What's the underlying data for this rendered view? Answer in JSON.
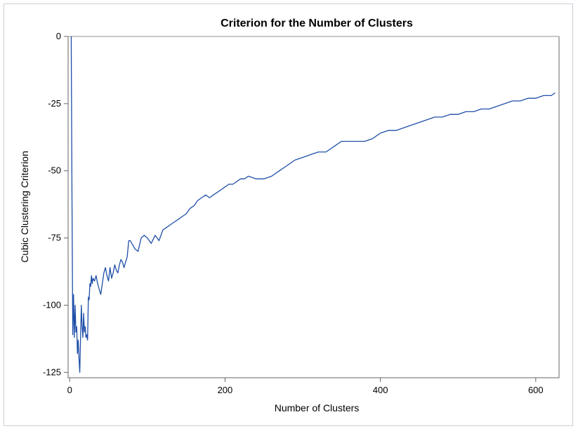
{
  "chart_data": {
    "type": "line",
    "title": "Criterion for the Number of Clusters",
    "xlabel": "Number of Clusters",
    "ylabel": "Cubic Clustering Criterion",
    "xlim": [
      -2,
      630
    ],
    "ylim": [
      -127,
      0
    ],
    "x_ticks": [
      0,
      200,
      400,
      600
    ],
    "y_ticks": [
      0,
      -25,
      -50,
      -75,
      -100,
      -125
    ],
    "reference_line": 0,
    "grid": false,
    "legend": "none",
    "colors": {
      "line": "#1f4fa8",
      "reference": "#c8c8c8",
      "axis": "#666666",
      "frame": "#c9ced6"
    },
    "series": [
      {
        "x": [
          2,
          3,
          4,
          5,
          6,
          7,
          8,
          9,
          10,
          11,
          12,
          13,
          14,
          15,
          16,
          17,
          18,
          19,
          20,
          21,
          22,
          23,
          24,
          25,
          26,
          27,
          28,
          29,
          30,
          32,
          34,
          36,
          38,
          40,
          42,
          44,
          46,
          48,
          50,
          52,
          54,
          56,
          58,
          60,
          62,
          64,
          66,
          68,
          70,
          72,
          74,
          76,
          78,
          80,
          84,
          88,
          92,
          96,
          100,
          105,
          110,
          115,
          120,
          125,
          130,
          135,
          140,
          145,
          150,
          155,
          160,
          165,
          170,
          175,
          180,
          185,
          190,
          195,
          200,
          205,
          210,
          215,
          220,
          225,
          230,
          240,
          250,
          260,
          270,
          280,
          290,
          300,
          310,
          320,
          330,
          340,
          350,
          360,
          370,
          380,
          390,
          400,
          410,
          420,
          430,
          440,
          450,
          460,
          470,
          480,
          490,
          500,
          510,
          520,
          530,
          540,
          550,
          560,
          570,
          580,
          590,
          600,
          610,
          620,
          625
        ],
        "values": [
          0,
          -60,
          -111,
          -96,
          -112,
          -100,
          -110,
          -108,
          -118,
          -113,
          -120,
          -125,
          -112,
          -100,
          -108,
          -112,
          -103,
          -110,
          -108,
          -112,
          -111,
          -113,
          -97,
          -98,
          -92,
          -93,
          -89,
          -92,
          -90,
          -91,
          -89,
          -92,
          -94,
          -96,
          -92,
          -88,
          -86,
          -89,
          -91,
          -86,
          -90,
          -88,
          -85,
          -87,
          -88,
          -85,
          -83,
          -84,
          -86,
          -84,
          -82,
          -76,
          -76,
          -77,
          -79,
          -80,
          -75,
          -74,
          -75,
          -77,
          -74,
          -76,
          -72,
          -71,
          -70,
          -69,
          -68,
          -67,
          -66,
          -64,
          -63,
          -61,
          -60,
          -59,
          -60,
          -59,
          -58,
          -57,
          -56,
          -55,
          -55,
          -54,
          -53,
          -53,
          -52,
          -53,
          -53,
          -52,
          -50,
          -48,
          -46,
          -45,
          -44,
          -43,
          -43,
          -41,
          -39,
          -39,
          -39,
          -39,
          -38,
          -36,
          -35,
          -35,
          -34,
          -33,
          -32,
          -31,
          -30,
          -30,
          -29,
          -29,
          -28,
          -28,
          -27,
          -27,
          -26,
          -25,
          -24,
          -24,
          -23,
          -23,
          -22,
          -22,
          -21
        ]
      }
    ]
  }
}
